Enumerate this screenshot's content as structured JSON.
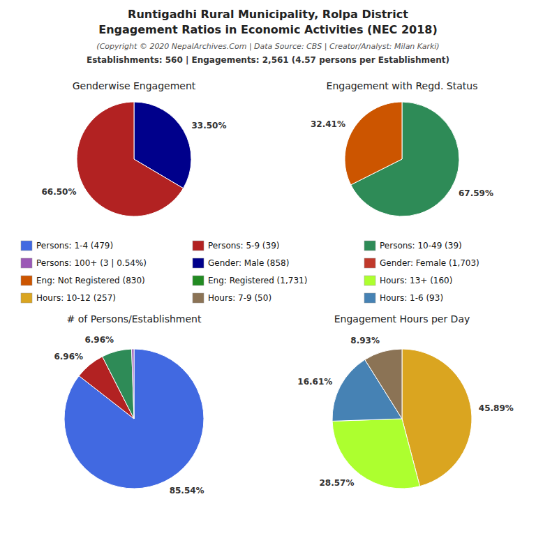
{
  "title": [
    "Runtigadhi Rural Municipality, Rolpa District",
    "Engagement Ratios in Economic Activities (NEC 2018)"
  ],
  "subtitle": [
    "(Copyright © 2020 NepalArchives.Com | Data Source: CBS | Creator/Analyst: Milan Karki)",
    "Establishments: 560 | Engagements: 2,561 (4.57 persons per Establishment)"
  ],
  "chart_data": [
    {
      "type": "pie",
      "title": "Genderwise Engagement",
      "values": [
        33.5,
        66.5
      ],
      "value_labels": [
        "33.50%",
        "66.50%"
      ],
      "colors": [
        "#00008B",
        "#B22222"
      ],
      "data_labels": true
    },
    {
      "type": "pie",
      "title": "Engagement with Regd. Status",
      "values": [
        67.59,
        32.41
      ],
      "value_labels": [
        "67.59%",
        "32.41%"
      ],
      "colors": [
        "#2E8B57",
        "#CC5500"
      ],
      "data_labels": true
    },
    {
      "type": "pie",
      "title": "# of Persons/Establishment",
      "values": [
        85.54,
        6.96,
        6.96,
        0.54
      ],
      "value_labels": [
        "85.54%",
        "6.96%",
        "6.96%",
        null
      ],
      "colors": [
        "#4169E1",
        "#B22222",
        "#2E8B57",
        "#9B59B6"
      ],
      "data_labels": true
    },
    {
      "type": "pie",
      "title": "Engagement Hours per Day",
      "values": [
        45.89,
        28.57,
        16.61,
        8.93
      ],
      "value_labels": [
        "45.89%",
        "28.57%",
        "16.61%",
        "8.93%"
      ],
      "colors": [
        "#DAA520",
        "#ADFF2F",
        "#4682B4",
        "#8B7355"
      ],
      "data_labels": true
    }
  ],
  "legend_entries": [
    {
      "label": "Persons: 1-4 (479)",
      "color": "#4169E1"
    },
    {
      "label": "Persons: 5-9 (39)",
      "color": "#B22222"
    },
    {
      "label": "Persons: 10-49 (39)",
      "color": "#2E8B57"
    },
    {
      "label": "Persons: 100+ (3 | 0.54%)",
      "color": "#9B59B6"
    },
    {
      "label": "Gender: Male (858)",
      "color": "#00008B"
    },
    {
      "label": "Gender: Female (1,703)",
      "color": "#C0392B"
    },
    {
      "label": "Eng: Not Registered (830)",
      "color": "#CC5500"
    },
    {
      "label": "Eng: Registered (1,731)",
      "color": "#228B22"
    },
    {
      "label": "Hours: 13+ (160)",
      "color": "#ADFF2F"
    },
    {
      "label": "Hours: 10-12 (257)",
      "color": "#DAA520"
    },
    {
      "label": "Hours: 7-9 (50)",
      "color": "#8B7355"
    },
    {
      "label": "Hours: 1-6 (93)",
      "color": "#4682B4"
    }
  ]
}
